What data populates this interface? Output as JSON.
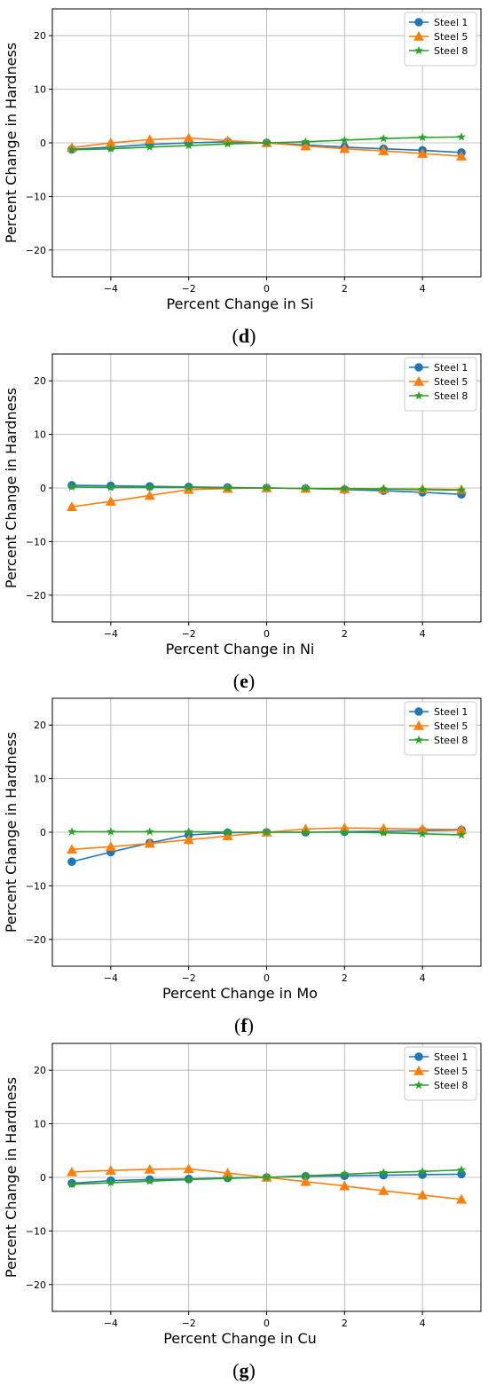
{
  "colors": {
    "steel_1": "#1f77b4",
    "steel_5": "#ff7f0e",
    "steel_8": "#2ca02c",
    "grid": "#b0b0b0",
    "axis": "#000000"
  },
  "chart_data": [
    {
      "type": "line",
      "panel": "d",
      "xlabel": "Percent Change in Si",
      "ylabel": "Percent Change in Hardness",
      "xlim": [
        -5.5,
        5.5
      ],
      "ylim": [
        -25,
        25
      ],
      "xticks": [
        -4,
        -2,
        0,
        2,
        4
      ],
      "yticks": [
        -20,
        -10,
        0,
        10,
        20
      ],
      "grid": true,
      "legend": "top-right",
      "x": [
        -5,
        -4,
        -3,
        -2,
        -1,
        0,
        1,
        2,
        3,
        4,
        5
      ],
      "series": [
        {
          "name": "Steel 1",
          "marker": "circle",
          "values": [
            -1.2,
            -0.8,
            -0.3,
            0.0,
            0.2,
            0.0,
            -0.4,
            -0.8,
            -1.1,
            -1.4,
            -1.8
          ]
        },
        {
          "name": "Steel 5",
          "marker": "triangle",
          "values": [
            -0.9,
            0.0,
            0.6,
            0.9,
            0.4,
            0.0,
            -0.6,
            -1.1,
            -1.5,
            -2.0,
            -2.5
          ]
        },
        {
          "name": "Steel 8",
          "marker": "star",
          "values": [
            -1.3,
            -1.1,
            -0.8,
            -0.5,
            -0.2,
            0.0,
            0.2,
            0.5,
            0.8,
            1.0,
            1.1
          ]
        }
      ]
    },
    {
      "type": "line",
      "panel": "e",
      "xlabel": "Percent Change in Ni",
      "ylabel": "Percent Change in Hardness",
      "xlim": [
        -5.5,
        5.5
      ],
      "ylim": [
        -25,
        25
      ],
      "xticks": [
        -4,
        -2,
        0,
        2,
        4
      ],
      "yticks": [
        -20,
        -10,
        0,
        10,
        20
      ],
      "grid": true,
      "legend": "top-right",
      "x": [
        -5,
        -4,
        -3,
        -2,
        -1,
        0,
        1,
        2,
        3,
        4,
        5
      ],
      "series": [
        {
          "name": "Steel 1",
          "marker": "circle",
          "values": [
            0.5,
            0.4,
            0.3,
            0.2,
            0.1,
            0.0,
            -0.1,
            -0.3,
            -0.5,
            -0.8,
            -1.2
          ]
        },
        {
          "name": "Steel 5",
          "marker": "triangle",
          "values": [
            -3.5,
            -2.5,
            -1.4,
            -0.3,
            -0.1,
            0.0,
            -0.1,
            -0.2,
            -0.2,
            -0.2,
            -0.3
          ]
        },
        {
          "name": "Steel 8",
          "marker": "star",
          "values": [
            0.2,
            0.1,
            0.1,
            0.1,
            0.0,
            0.0,
            -0.1,
            -0.1,
            -0.2,
            -0.3,
            -0.4
          ]
        }
      ]
    },
    {
      "type": "line",
      "panel": "f",
      "xlabel": "Percent Change in Mo",
      "ylabel": "Percent Change in Hardness",
      "xlim": [
        -5.5,
        5.5
      ],
      "ylim": [
        -25,
        25
      ],
      "xticks": [
        -4,
        -2,
        0,
        2,
        4
      ],
      "yticks": [
        -20,
        -10,
        0,
        10,
        20
      ],
      "grid": true,
      "legend": "top-right",
      "x": [
        -5,
        -4,
        -3,
        -2,
        -1,
        0,
        1,
        2,
        3,
        4,
        5
      ],
      "series": [
        {
          "name": "Steel 1",
          "marker": "circle",
          "values": [
            -5.5,
            -3.7,
            -2.0,
            -0.5,
            -0.1,
            0.0,
            0.0,
            0.1,
            0.2,
            0.3,
            0.4
          ]
        },
        {
          "name": "Steel 5",
          "marker": "triangle",
          "values": [
            -3.2,
            -2.7,
            -2.1,
            -1.4,
            -0.7,
            0.0,
            0.6,
            0.8,
            0.7,
            0.6,
            0.5
          ]
        },
        {
          "name": "Steel 8",
          "marker": "star",
          "values": [
            0.1,
            0.1,
            0.1,
            0.1,
            0.0,
            0.0,
            0.0,
            0.0,
            -0.1,
            -0.3,
            -0.5
          ]
        }
      ]
    },
    {
      "type": "line",
      "panel": "g",
      "xlabel": "Percent Change in Cu",
      "ylabel": "Percent Change in Hardness",
      "xlim": [
        -5.5,
        5.5
      ],
      "ylim": [
        -25,
        25
      ],
      "xticks": [
        -4,
        -2,
        0,
        2,
        4
      ],
      "yticks": [
        -20,
        -10,
        0,
        10,
        20
      ],
      "grid": true,
      "legend": "top-right",
      "x": [
        -5,
        -4,
        -3,
        -2,
        -1,
        0,
        1,
        2,
        3,
        4,
        5
      ],
      "series": [
        {
          "name": "Steel 1",
          "marker": "circle",
          "values": [
            -1.1,
            -0.6,
            -0.4,
            -0.3,
            -0.1,
            0.0,
            0.2,
            0.3,
            0.4,
            0.5,
            0.6
          ]
        },
        {
          "name": "Steel 5",
          "marker": "triangle",
          "values": [
            1.0,
            1.3,
            1.5,
            1.6,
            0.8,
            0.0,
            -0.8,
            -1.6,
            -2.5,
            -3.3,
            -4.1
          ]
        },
        {
          "name": "Steel 8",
          "marker": "star",
          "values": [
            -1.3,
            -1.0,
            -0.7,
            -0.4,
            -0.2,
            0.0,
            0.3,
            0.6,
            0.9,
            1.1,
            1.4
          ]
        }
      ]
    }
  ]
}
